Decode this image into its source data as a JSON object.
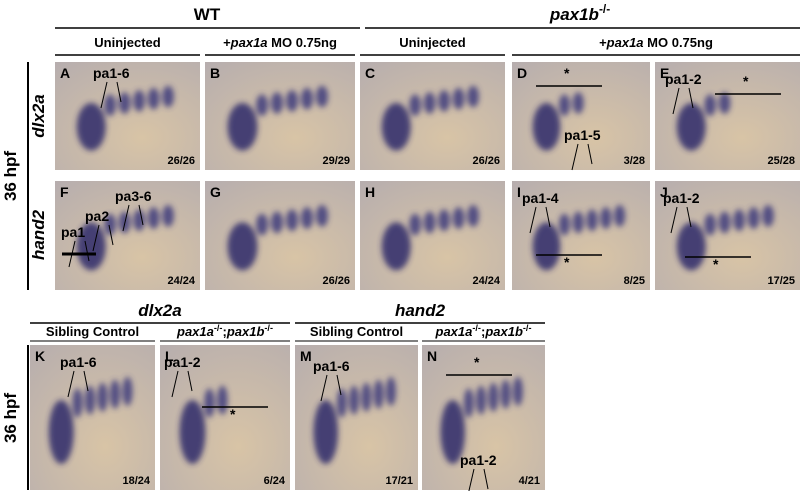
{
  "top": {
    "wt": "WT",
    "mutant": {
      "gene": "pax1b",
      "sup": "-/-"
    },
    "conditions": [
      {
        "text": "Uninjected"
      },
      {
        "plus": "+",
        "gene": "pax1a",
        "rest": " MO 0.75ng"
      },
      {
        "text": "Uninjected"
      },
      {
        "plus": "+",
        "gene": "pax1a",
        "rest": " MO 0.75ng"
      }
    ],
    "stage": "36 hpf",
    "rows": [
      "dlx2a",
      "hand2"
    ]
  },
  "bottom": {
    "genes": [
      "dlx2a",
      "hand2"
    ],
    "conditions": [
      {
        "text": "Sibling Control"
      },
      {
        "g1": "pax1a",
        "s1": "-/-",
        "sep": ";",
        "g2": "pax1b",
        "s2": "-/-"
      },
      {
        "text": "Sibling Control"
      },
      {
        "g1": "pax1a",
        "s1": "-/-",
        "sep": ";",
        "g2": "pax1b",
        "s2": "-/-"
      }
    ],
    "stage": "36 hpf"
  },
  "panels": [
    {
      "letter": "A",
      "count": "26/26",
      "labels": [
        "pa1-6"
      ]
    },
    {
      "letter": "B",
      "count": "29/29",
      "labels": []
    },
    {
      "letter": "C",
      "count": "26/26",
      "labels": []
    },
    {
      "letter": "D",
      "count": "3/28",
      "labels": [
        "*",
        "pa1-5"
      ]
    },
    {
      "letter": "E",
      "count": "25/28",
      "labels": [
        "pa1-2",
        "*"
      ]
    },
    {
      "letter": "F",
      "count": "24/24",
      "labels": [
        "pa1",
        "pa2",
        "pa3-6"
      ]
    },
    {
      "letter": "G",
      "count": "26/26",
      "labels": []
    },
    {
      "letter": "H",
      "count": "24/24",
      "labels": []
    },
    {
      "letter": "I",
      "count": "8/25",
      "labels": [
        "pa1-4",
        "*"
      ]
    },
    {
      "letter": "J",
      "count": "17/25",
      "labels": [
        "pa1-2",
        "*"
      ]
    },
    {
      "letter": "K",
      "count": "18/24",
      "labels": [
        "pa1-6"
      ]
    },
    {
      "letter": "L",
      "count": "6/24",
      "labels": [
        "pa1-2",
        "*"
      ]
    },
    {
      "letter": "M",
      "count": "17/21",
      "labels": [
        "pa1-6"
      ]
    },
    {
      "letter": "N",
      "count": "4/21",
      "labels": [
        "*",
        "pa1-2"
      ]
    }
  ]
}
